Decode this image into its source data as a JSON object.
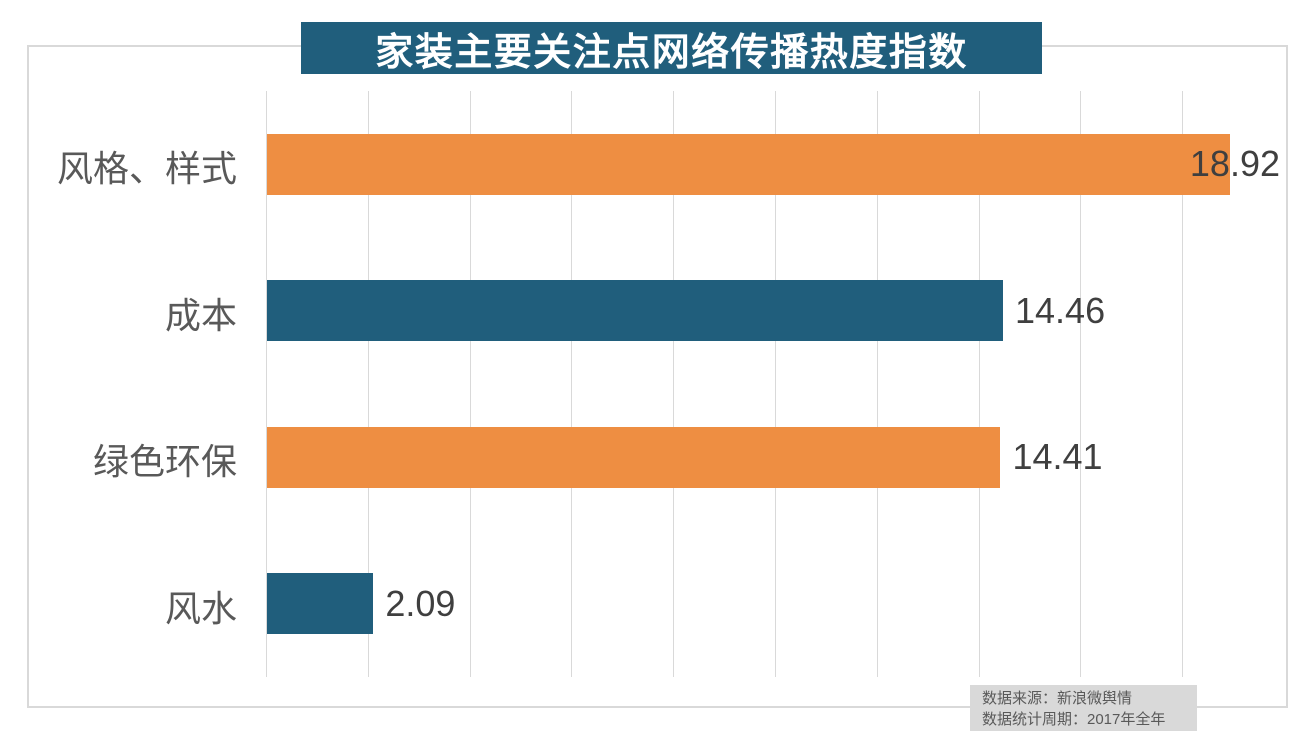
{
  "chart_data": {
    "type": "bar",
    "orientation": "horizontal",
    "title": "家装主要关注点网络传播热度指数",
    "categories": [
      "风格、样式",
      "成本",
      "绿色环保",
      "风水"
    ],
    "values": [
      18.92,
      14.46,
      14.41,
      2.09
    ],
    "value_labels": [
      "18.92",
      "14.46",
      "14.41",
      "2.09"
    ],
    "xlim": [
      0,
      20
    ],
    "gridline_step": 2,
    "grid": "vertical",
    "legend": "none",
    "bar_colors": [
      "#EE8E42",
      "#205E7C",
      "#EE8E42",
      "#205E7C"
    ]
  },
  "footer": {
    "source_line": "数据来源：新浪微舆情",
    "period_line": "数据统计周期：2017年全年"
  },
  "colors": {
    "title_bg": "#205E7C",
    "title_text": "#FFFFFF",
    "orange": "#EE8E42",
    "teal": "#205E7C",
    "gridline": "#D9D9D9",
    "frame_border": "#D9D9D9",
    "category_label": "#595959",
    "value_label": "#3F3F3F",
    "footer_bg": "#D9D9D9",
    "footer_text": "#595959"
  }
}
